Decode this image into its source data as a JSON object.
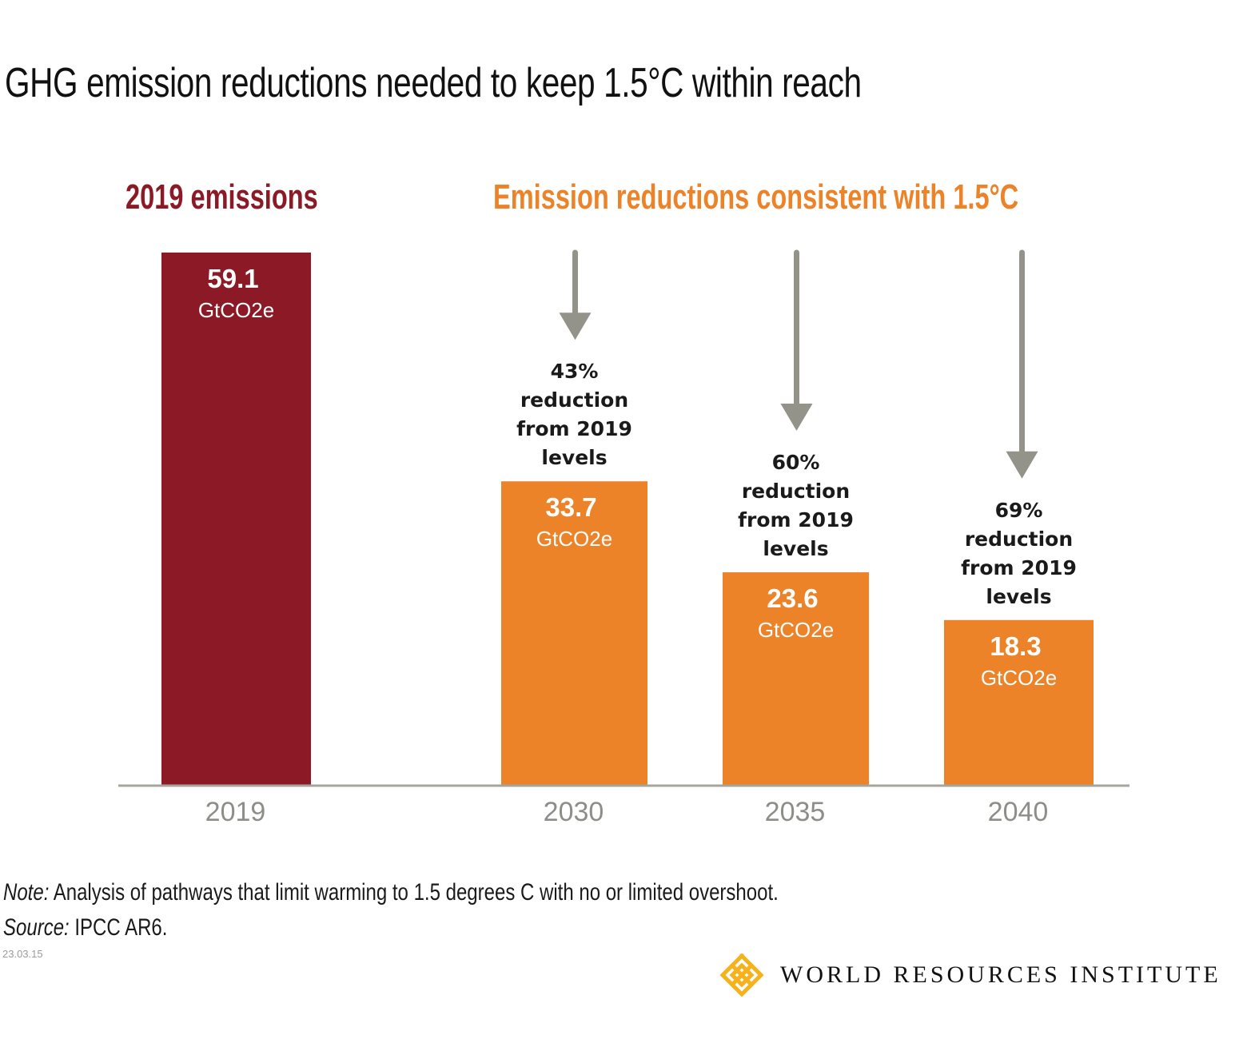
{
  "title": "GHG emission reductions needed to keep 1.5°C within reach",
  "group_labels": {
    "left": "2019 emissions",
    "right": "Emission reductions consistent with 1.5°C"
  },
  "colors": {
    "baseline_bar": "#8b1a26",
    "reduction_bar": "#ec8329",
    "arrow": "#93938a",
    "axis": "#a5a59d",
    "tick_label": "#8e8e88",
    "left_heading": "#8b1a26",
    "right_heading": "#ec8329",
    "logo": "#f6b21c"
  },
  "chart_data": {
    "type": "bar",
    "title": "GHG emission reductions needed to keep 1.5°C within reach",
    "xlabel": "",
    "ylabel": "",
    "unit": "GtCO2e",
    "categories": [
      "2019",
      "2030",
      "2035",
      "2040"
    ],
    "values": [
      59.1,
      33.7,
      23.6,
      18.3
    ],
    "value_labels": [
      "59.1",
      "33.7",
      "23.6",
      "18.3"
    ],
    "groups": [
      "2019 emissions",
      "Emission reductions consistent with 1.5°C",
      "Emission reductions consistent with 1.5°C",
      "Emission reductions consistent with 1.5°C"
    ],
    "annotations": [
      null,
      [
        "43%",
        "reduction",
        "from 2019",
        "levels"
      ],
      [
        "60%",
        "reduction",
        "from 2019",
        "levels"
      ],
      [
        "69%",
        "reduction",
        "from 2019",
        "levels"
      ]
    ],
    "reduction_percent": [
      null,
      43,
      60,
      69
    ],
    "ylim": [
      0,
      59.1
    ],
    "grid": false,
    "legend": "none"
  },
  "footer": {
    "note_label": "Note:",
    "note_text": " Analysis of pathways that limit warming to 1.5 degrees C with no or limited overshoot.",
    "source_label": "Source:",
    "source_text": " IPCC AR6.",
    "date_code": "23.03.15",
    "logo_text": "WORLD RESOURCES INSTITUTE",
    "logo_icon": "wri-knot-icon"
  }
}
